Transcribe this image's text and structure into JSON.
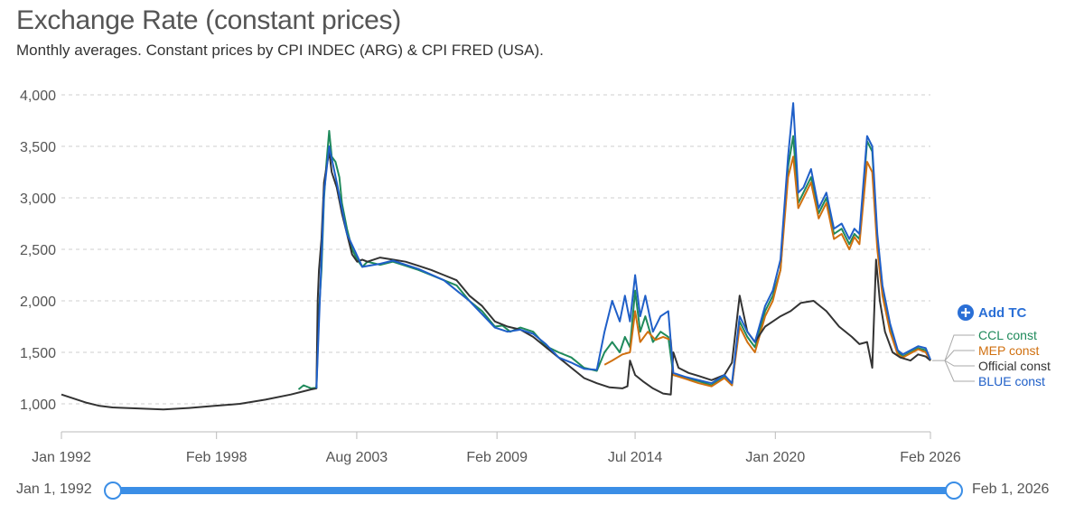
{
  "title": "Exchange Rate (constant prices)",
  "subtitle": "Monthly averages. Constant prices by CPI INDEC (ARG) & CPI FRED (USA).",
  "add_tc_label": "Add TC",
  "range": {
    "start_label": "Jan 1, 1992",
    "end_label": "Feb 1, 2026"
  },
  "chart_data": {
    "type": "line",
    "ylim": [
      900,
      4000
    ],
    "yticks": [
      {
        "value": 1000,
        "label": "1,000"
      },
      {
        "value": 1500,
        "label": "1,500"
      },
      {
        "value": 2000,
        "label": "2,000"
      },
      {
        "value": 2500,
        "label": "2,500"
      },
      {
        "value": 3000,
        "label": "3,000"
      },
      {
        "value": 3500,
        "label": "3,500"
      },
      {
        "value": 4000,
        "label": "4,000"
      }
    ],
    "xlim": [
      1992.0,
      2026.083
    ],
    "xticks": [
      {
        "value": 1992.0,
        "label": "Jan 1992"
      },
      {
        "value": 1998.083,
        "label": "Feb 1998"
      },
      {
        "value": 2003.583,
        "label": "Aug 2003"
      },
      {
        "value": 2009.083,
        "label": "Feb 2009"
      },
      {
        "value": 2014.5,
        "label": "Jul 2014"
      },
      {
        "value": 2020.0,
        "label": "Jan 2020"
      },
      {
        "value": 2026.083,
        "label": "Feb 2026"
      }
    ],
    "grid": "horizontal-dashed",
    "legend_position": "right",
    "series": [
      {
        "name": "CCL const",
        "color": "#1f8a5b",
        "points": [
          [
            2001.3,
            1140
          ],
          [
            2001.5,
            1180
          ],
          [
            2001.8,
            1150
          ],
          [
            2002.0,
            1155
          ],
          [
            2002.1,
            1900
          ],
          [
            2002.2,
            2300
          ],
          [
            2002.3,
            3000
          ],
          [
            2002.4,
            3350
          ],
          [
            2002.5,
            3650
          ],
          [
            2002.6,
            3400
          ],
          [
            2002.75,
            3350
          ],
          [
            2002.9,
            3200
          ],
          [
            2003.0,
            2950
          ],
          [
            2003.2,
            2700
          ],
          [
            2003.4,
            2500
          ],
          [
            2003.6,
            2400
          ],
          [
            2003.8,
            2330
          ],
          [
            2004.0,
            2380
          ],
          [
            2004.5,
            2350
          ],
          [
            2005.0,
            2380
          ],
          [
            2005.5,
            2340
          ],
          [
            2006.0,
            2300
          ],
          [
            2006.5,
            2250
          ],
          [
            2007.0,
            2200
          ],
          [
            2007.5,
            2150
          ],
          [
            2008.0,
            2000
          ],
          [
            2008.5,
            1900
          ],
          [
            2009.0,
            1750
          ],
          [
            2009.3,
            1760
          ],
          [
            2009.6,
            1700
          ],
          [
            2010.0,
            1740
          ],
          [
            2010.5,
            1700
          ],
          [
            2011.0,
            1560
          ],
          [
            2011.5,
            1500
          ],
          [
            2012.0,
            1450
          ],
          [
            2012.5,
            1350
          ],
          [
            2013.0,
            1320
          ],
          [
            2013.3,
            1500
          ],
          [
            2013.6,
            1600
          ],
          [
            2013.9,
            1500
          ],
          [
            2014.1,
            1650
          ],
          [
            2014.3,
            1550
          ],
          [
            2014.5,
            2100
          ],
          [
            2014.7,
            1700
          ],
          [
            2014.9,
            1850
          ],
          [
            2015.2,
            1600
          ],
          [
            2015.5,
            1700
          ],
          [
            2015.8,
            1650
          ],
          [
            2016.0,
            1280
          ],
          [
            2016.5,
            1250
          ],
          [
            2017.0,
            1220
          ],
          [
            2017.5,
            1180
          ],
          [
            2018.0,
            1260
          ],
          [
            2018.3,
            1180
          ],
          [
            2018.6,
            1800
          ],
          [
            2018.9,
            1650
          ],
          [
            2019.2,
            1550
          ],
          [
            2019.6,
            1900
          ],
          [
            2019.9,
            2050
          ],
          [
            2020.2,
            2300
          ],
          [
            2020.5,
            3300
          ],
          [
            2020.7,
            3600
          ],
          [
            2020.9,
            2950
          ],
          [
            2021.1,
            3050
          ],
          [
            2021.4,
            3200
          ],
          [
            2021.7,
            2850
          ],
          [
            2022.0,
            3000
          ],
          [
            2022.3,
            2650
          ],
          [
            2022.6,
            2700
          ],
          [
            2022.9,
            2550
          ],
          [
            2023.1,
            2650
          ],
          [
            2023.3,
            2600
          ],
          [
            2023.6,
            3550
          ],
          [
            2023.8,
            3450
          ],
          [
            2024.0,
            2600
          ],
          [
            2024.2,
            2100
          ],
          [
            2024.5,
            1750
          ],
          [
            2024.8,
            1500
          ],
          [
            2025.0,
            1460
          ],
          [
            2025.3,
            1500
          ],
          [
            2025.6,
            1540
          ],
          [
            2025.9,
            1520
          ],
          [
            2026.083,
            1420
          ]
        ]
      },
      {
        "name": "MEP const",
        "color": "#d07010",
        "points": [
          [
            2013.3,
            1380
          ],
          [
            2013.6,
            1420
          ],
          [
            2014.0,
            1480
          ],
          [
            2014.3,
            1500
          ],
          [
            2014.5,
            1900
          ],
          [
            2014.7,
            1600
          ],
          [
            2015.0,
            1700
          ],
          [
            2015.3,
            1620
          ],
          [
            2015.6,
            1650
          ],
          [
            2015.9,
            1620
          ],
          [
            2016.0,
            1280
          ],
          [
            2016.5,
            1240
          ],
          [
            2017.0,
            1200
          ],
          [
            2017.5,
            1170
          ],
          [
            2018.0,
            1250
          ],
          [
            2018.3,
            1180
          ],
          [
            2018.6,
            1750
          ],
          [
            2018.9,
            1600
          ],
          [
            2019.2,
            1500
          ],
          [
            2019.6,
            1850
          ],
          [
            2019.9,
            2000
          ],
          [
            2020.2,
            2300
          ],
          [
            2020.5,
            3200
          ],
          [
            2020.7,
            3400
          ],
          [
            2020.9,
            2900
          ],
          [
            2021.1,
            3000
          ],
          [
            2021.4,
            3150
          ],
          [
            2021.7,
            2800
          ],
          [
            2022.0,
            2950
          ],
          [
            2022.3,
            2600
          ],
          [
            2022.6,
            2650
          ],
          [
            2022.9,
            2500
          ],
          [
            2023.1,
            2620
          ],
          [
            2023.3,
            2550
          ],
          [
            2023.6,
            3350
          ],
          [
            2023.8,
            3250
          ],
          [
            2024.0,
            2500
          ],
          [
            2024.2,
            2050
          ],
          [
            2024.5,
            1700
          ],
          [
            2024.8,
            1480
          ],
          [
            2025.0,
            1450
          ],
          [
            2025.3,
            1490
          ],
          [
            2025.6,
            1530
          ],
          [
            2025.9,
            1500
          ],
          [
            2026.083,
            1420
          ]
        ]
      },
      {
        "name": "Official const",
        "color": "#333333",
        "points": [
          [
            1992.0,
            1090
          ],
          [
            1992.5,
            1050
          ],
          [
            1993.0,
            1010
          ],
          [
            1993.5,
            980
          ],
          [
            1994.0,
            965
          ],
          [
            1995.0,
            955
          ],
          [
            1996.0,
            945
          ],
          [
            1997.0,
            960
          ],
          [
            1998.0,
            980
          ],
          [
            1999.0,
            1000
          ],
          [
            2000.0,
            1040
          ],
          [
            2001.0,
            1090
          ],
          [
            2001.8,
            1140
          ],
          [
            2002.0,
            1150
          ],
          [
            2002.05,
            2000
          ],
          [
            2002.1,
            2300
          ],
          [
            2002.2,
            2600
          ],
          [
            2002.3,
            3150
          ],
          [
            2002.4,
            3300
          ],
          [
            2002.5,
            3450
          ],
          [
            2002.6,
            3250
          ],
          [
            2002.8,
            3100
          ],
          [
            2003.0,
            2850
          ],
          [
            2003.2,
            2650
          ],
          [
            2003.4,
            2450
          ],
          [
            2003.6,
            2380
          ],
          [
            2003.8,
            2400
          ],
          [
            2004.0,
            2380
          ],
          [
            2004.5,
            2420
          ],
          [
            2005.0,
            2400
          ],
          [
            2005.5,
            2380
          ],
          [
            2006.0,
            2340
          ],
          [
            2006.5,
            2300
          ],
          [
            2007.0,
            2250
          ],
          [
            2007.5,
            2200
          ],
          [
            2008.0,
            2050
          ],
          [
            2008.5,
            1950
          ],
          [
            2009.0,
            1800
          ],
          [
            2009.5,
            1750
          ],
          [
            2010.0,
            1720
          ],
          [
            2010.5,
            1650
          ],
          [
            2011.0,
            1550
          ],
          [
            2011.5,
            1450
          ],
          [
            2012.0,
            1350
          ],
          [
            2012.5,
            1250
          ],
          [
            2013.0,
            1200
          ],
          [
            2013.5,
            1160
          ],
          [
            2014.0,
            1150
          ],
          [
            2014.2,
            1170
          ],
          [
            2014.3,
            1420
          ],
          [
            2014.5,
            1280
          ],
          [
            2014.8,
            1220
          ],
          [
            2015.2,
            1150
          ],
          [
            2015.6,
            1100
          ],
          [
            2015.9,
            1090
          ],
          [
            2016.0,
            1500
          ],
          [
            2016.2,
            1350
          ],
          [
            2016.6,
            1300
          ],
          [
            2017.0,
            1270
          ],
          [
            2017.5,
            1230
          ],
          [
            2018.0,
            1280
          ],
          [
            2018.3,
            1400
          ],
          [
            2018.6,
            2050
          ],
          [
            2018.9,
            1700
          ],
          [
            2019.2,
            1600
          ],
          [
            2019.6,
            1750
          ],
          [
            2019.9,
            1800
          ],
          [
            2020.2,
            1850
          ],
          [
            2020.6,
            1900
          ],
          [
            2021.0,
            1980
          ],
          [
            2021.5,
            2000
          ],
          [
            2022.0,
            1900
          ],
          [
            2022.5,
            1750
          ],
          [
            2023.0,
            1650
          ],
          [
            2023.3,
            1580
          ],
          [
            2023.6,
            1600
          ],
          [
            2023.8,
            1350
          ],
          [
            2023.95,
            2400
          ],
          [
            2024.1,
            2000
          ],
          [
            2024.3,
            1700
          ],
          [
            2024.6,
            1500
          ],
          [
            2024.9,
            1450
          ],
          [
            2025.3,
            1420
          ],
          [
            2025.6,
            1480
          ],
          [
            2025.9,
            1460
          ],
          [
            2026.083,
            1420
          ]
        ]
      },
      {
        "name": "BLUE const",
        "color": "#1f5fc8",
        "points": [
          [
            2002.0,
            1150
          ],
          [
            2002.3,
            3050
          ],
          [
            2002.5,
            3500
          ],
          [
            2002.8,
            3150
          ],
          [
            2003.2,
            2650
          ],
          [
            2003.8,
            2330
          ],
          [
            2004.5,
            2360
          ],
          [
            2005.0,
            2390
          ],
          [
            2006.0,
            2310
          ],
          [
            2007.0,
            2200
          ],
          [
            2008.0,
            2000
          ],
          [
            2009.0,
            1740
          ],
          [
            2009.5,
            1700
          ],
          [
            2010.0,
            1720
          ],
          [
            2010.5,
            1680
          ],
          [
            2011.0,
            1580
          ],
          [
            2011.5,
            1450
          ],
          [
            2012.0,
            1400
          ],
          [
            2012.5,
            1340
          ],
          [
            2013.0,
            1330
          ],
          [
            2013.3,
            1700
          ],
          [
            2013.6,
            2000
          ],
          [
            2013.9,
            1800
          ],
          [
            2014.1,
            2050
          ],
          [
            2014.3,
            1800
          ],
          [
            2014.5,
            2250
          ],
          [
            2014.7,
            1850
          ],
          [
            2014.9,
            2050
          ],
          [
            2015.2,
            1700
          ],
          [
            2015.5,
            1850
          ],
          [
            2015.8,
            1900
          ],
          [
            2016.0,
            1300
          ],
          [
            2016.5,
            1260
          ],
          [
            2017.0,
            1230
          ],
          [
            2017.5,
            1200
          ],
          [
            2018.0,
            1280
          ],
          [
            2018.3,
            1200
          ],
          [
            2018.6,
            1850
          ],
          [
            2018.9,
            1700
          ],
          [
            2019.2,
            1600
          ],
          [
            2019.6,
            1950
          ],
          [
            2019.9,
            2100
          ],
          [
            2020.2,
            2400
          ],
          [
            2020.5,
            3400
          ],
          [
            2020.7,
            3920
          ],
          [
            2020.9,
            3050
          ],
          [
            2021.1,
            3100
          ],
          [
            2021.4,
            3280
          ],
          [
            2021.7,
            2900
          ],
          [
            2022.0,
            3050
          ],
          [
            2022.3,
            2700
          ],
          [
            2022.6,
            2750
          ],
          [
            2022.9,
            2600
          ],
          [
            2023.1,
            2700
          ],
          [
            2023.3,
            2650
          ],
          [
            2023.6,
            3600
          ],
          [
            2023.8,
            3500
          ],
          [
            2024.0,
            2650
          ],
          [
            2024.2,
            2150
          ],
          [
            2024.5,
            1780
          ],
          [
            2024.8,
            1520
          ],
          [
            2025.0,
            1480
          ],
          [
            2025.3,
            1520
          ],
          [
            2025.6,
            1560
          ],
          [
            2025.9,
            1540
          ],
          [
            2026.083,
            1430
          ]
        ]
      }
    ]
  }
}
